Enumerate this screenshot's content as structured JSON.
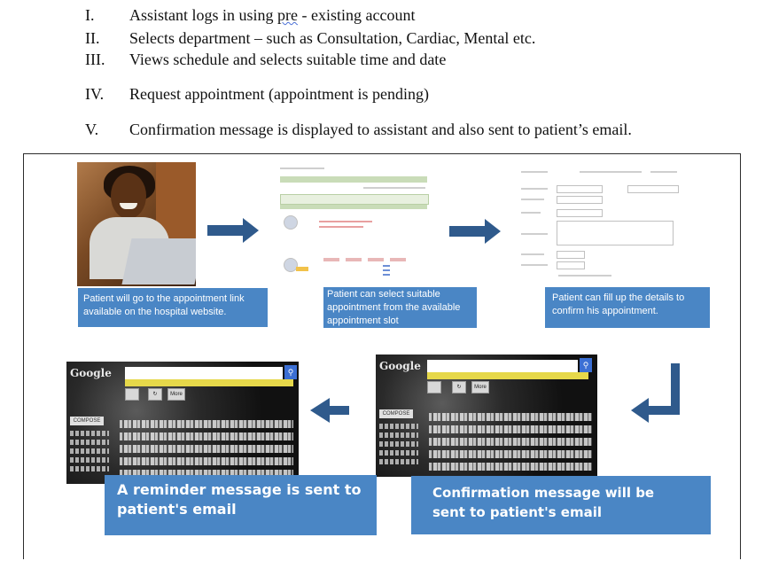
{
  "steps": [
    {
      "num": "I.",
      "pre": "Assistant logs in using ",
      "squiggle": "pre",
      "post": " - existing account"
    },
    {
      "num": "II.",
      "text": "Selects department – such as Consultation, Cardiac, Mental etc."
    },
    {
      "num": "III.",
      "text": "Views schedule and selects suitable time and date"
    },
    {
      "num": "IV.",
      "text": " Request appointment (appointment is pending)"
    },
    {
      "num": "V.",
      "text": "Confirmation message is displayed to assistant and also sent to patient’s email."
    }
  ],
  "captions": {
    "website": "Patient will go to the  appointment link available on the hospital website.",
    "select_slot": "Patient can select  suitable appointment  from the available  appointment slot",
    "fill_details": "Patient can fill up the details to confirm his appointment.",
    "confirmation": "Confirmation message will be sent to patient's email",
    "reminder": "A reminder message is sent to patient's email"
  },
  "email_ui": {
    "logo": "Google",
    "compose_label": "COMPOSE",
    "more_label": "More",
    "search_icon": "magnifier-icon"
  },
  "colors": {
    "caption_bg": "#4a86c5",
    "arrow": "#2f5a8c",
    "frame": "#2c2c2c"
  }
}
